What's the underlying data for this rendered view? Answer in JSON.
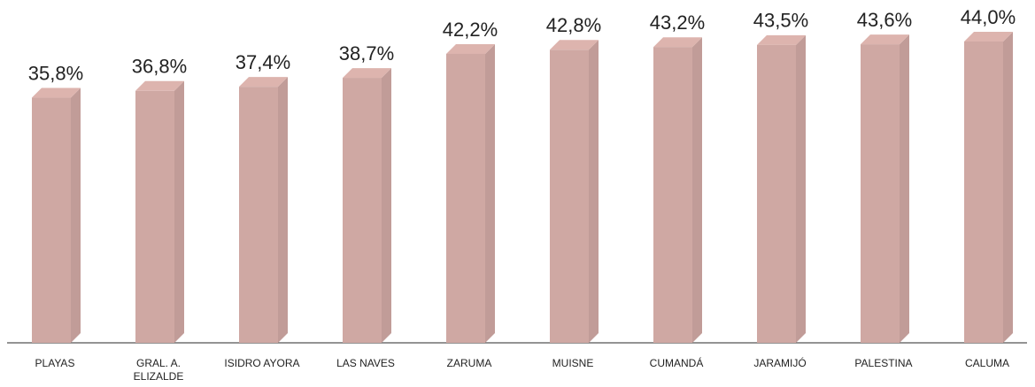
{
  "chart_data": {
    "type": "bar3d",
    "categories": [
      "PLAYAS",
      "GRAL. A. ELIZALDE",
      "ISIDRO AYORA",
      "LAS NAVES",
      "ZARUMA",
      "MUISNE",
      "CUMANDÁ",
      "JARAMIJÓ",
      "PALESTINA",
      "CALUMA"
    ],
    "values": [
      35.8,
      36.8,
      37.4,
      38.7,
      42.2,
      42.8,
      43.2,
      43.5,
      43.6,
      44.0
    ],
    "value_labels": [
      "35,8%",
      "36,8%",
      "37,4%",
      "38,7%",
      "42,2%",
      "42,8%",
      "43,2%",
      "43,5%",
      "43,6%",
      "44,0%"
    ],
    "color": "#cfa8a3"
  }
}
